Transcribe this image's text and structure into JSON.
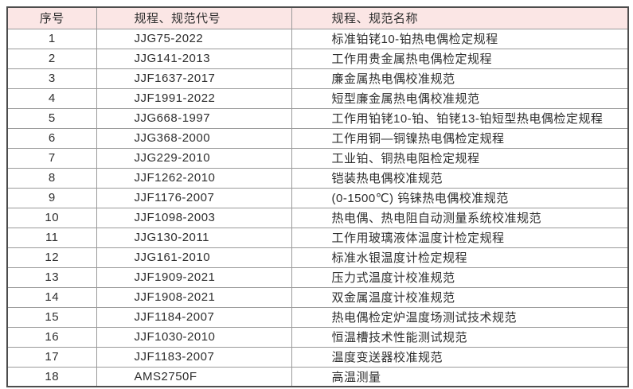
{
  "table": {
    "colors": {
      "header_bg": "#fbe6e5",
      "border_outer": "#4d4d4d",
      "border_inner": "#9a9a9a",
      "text": "#2e2e2e"
    },
    "headers": {
      "index": "序号",
      "code": "规程、规范代号",
      "name": "规程、规范名称"
    },
    "rows": [
      {
        "index": "1",
        "code": "JJG75-2022",
        "name": "标准铂铑10-铂热电偶检定规程"
      },
      {
        "index": "2",
        "code": "JJG141-2013",
        "name": "工作用贵金属热电偶检定规程"
      },
      {
        "index": "3",
        "code": "JJF1637-2017",
        "name": "廉金属热电偶校准规范"
      },
      {
        "index": "4",
        "code": "JJF1991-2022",
        "name": "短型廉金属热电偶校准规范"
      },
      {
        "index": "5",
        "code": "JJG668-1997",
        "name": "工作用铂铑10-铂、铂铑13-铂短型热电偶检定规程"
      },
      {
        "index": "6",
        "code": "JJG368-2000",
        "name": "工作用铜—铜镍热电偶检定规程"
      },
      {
        "index": "7",
        "code": "JJG229-2010",
        "name": "工业铂、铜热电阻检定规程"
      },
      {
        "index": "8",
        "code": "JJF1262-2010",
        "name": "铠装热电偶校准规范"
      },
      {
        "index": "9",
        "code": "JJF1176-2007",
        "name": "(0-1500℃) 钨铼热电偶校准规范"
      },
      {
        "index": "10",
        "code": "JJF1098-2003",
        "name": "热电偶、热电阻自动测量系统校准规范"
      },
      {
        "index": "11",
        "code": "JJG130-2011",
        "name": "工作用玻璃液体温度计检定规程"
      },
      {
        "index": "12",
        "code": "JJG161-2010",
        "name": "标准水银温度计检定规程"
      },
      {
        "index": "13",
        "code": "JJF1909-2021",
        "name": "压力式温度计校准规范"
      },
      {
        "index": "14",
        "code": "JJF1908-2021",
        "name": "双金属温度计校准规范"
      },
      {
        "index": "15",
        "code": "JJF1184-2007",
        "name": "热电偶检定炉温度场测试技术规范"
      },
      {
        "index": "16",
        "code": "JJF1030-2010",
        "name": "恒温槽技术性能测试规范"
      },
      {
        "index": "17",
        "code": "JJF1183-2007",
        "name": "温度变送器校准规范"
      },
      {
        "index": "18",
        "code": "AMS2750F",
        "name": "高温测量"
      }
    ]
  }
}
